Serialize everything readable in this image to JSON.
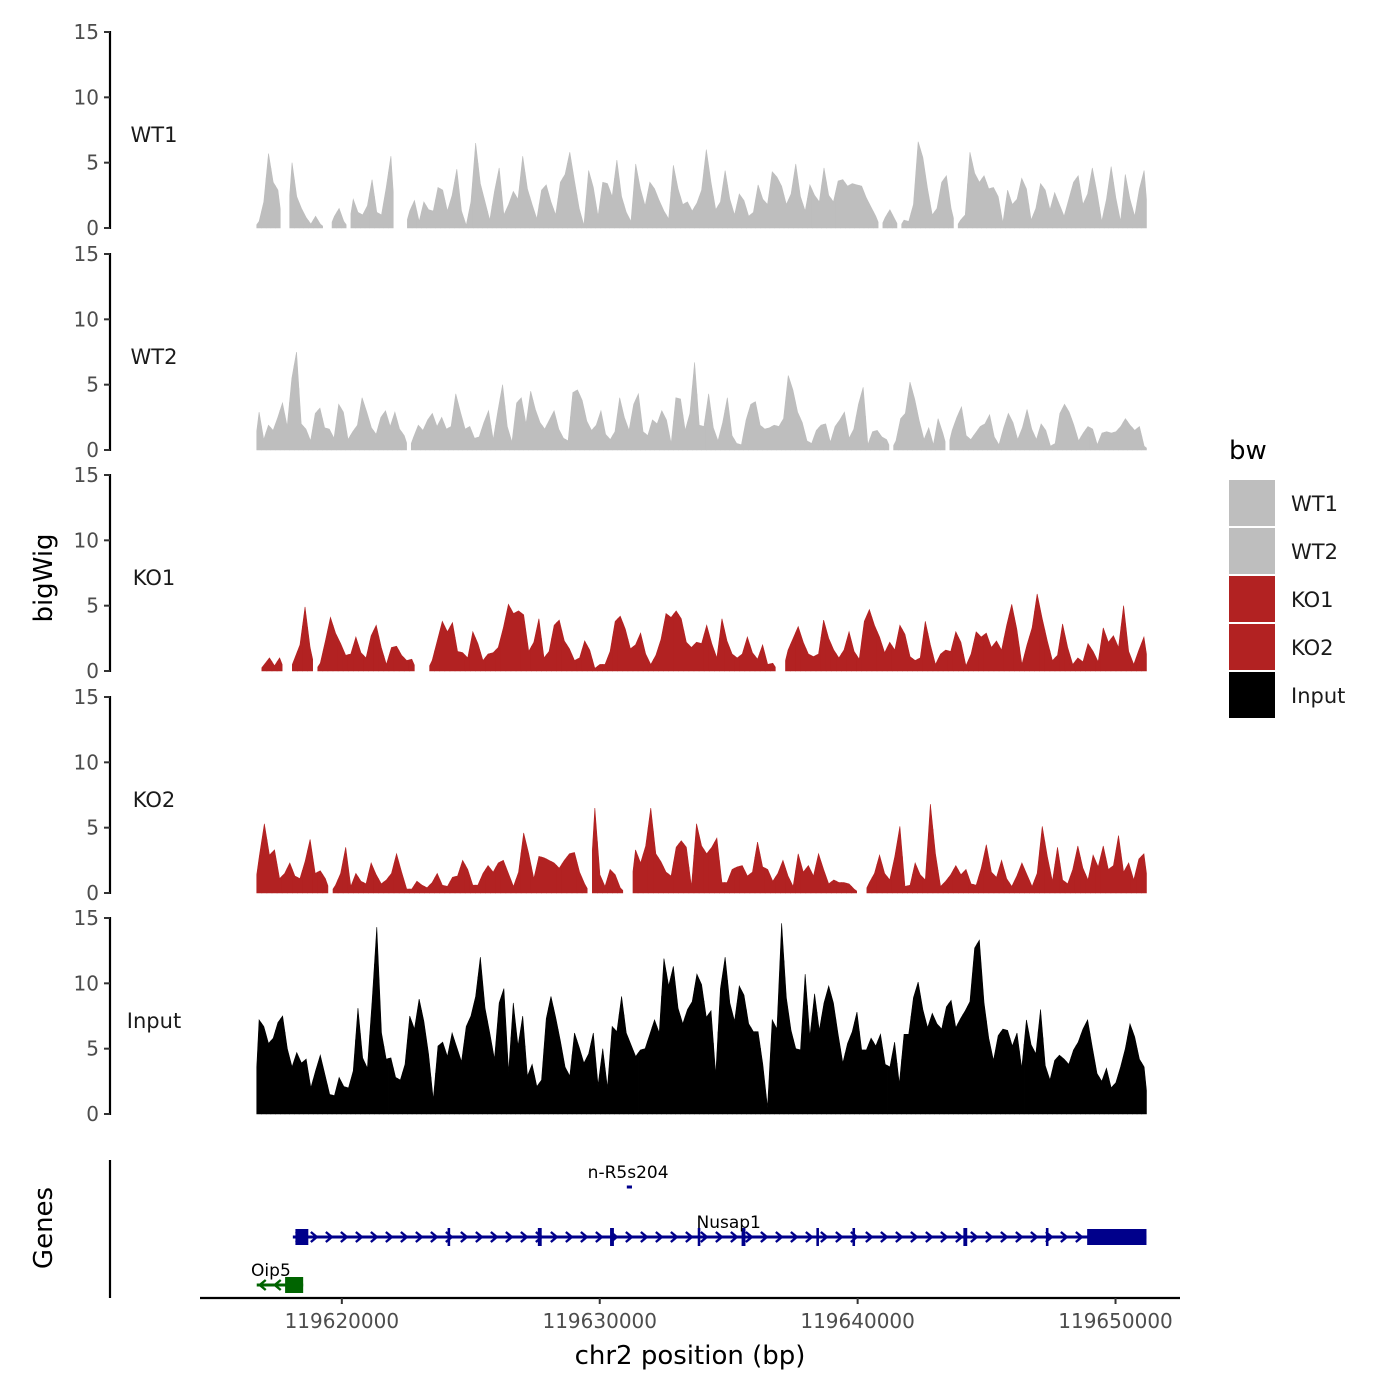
{
  "chart_data": {
    "type": "area",
    "title": "",
    "xlabel": "chr2 position (bp)",
    "ylabel": "bigWig",
    "genes_ylabel": "Genes",
    "xlim": [
      119614500,
      119652500
    ],
    "x_range": [
      119616700,
      119651200
    ],
    "ylim": [
      0,
      15
    ],
    "y_ticks": [
      "0",
      "5",
      "10",
      "15"
    ],
    "x_ticks": [
      {
        "value": 119620000,
        "label": "119620000"
      },
      {
        "value": 119630000,
        "label": "119630000"
      },
      {
        "value": 119640000,
        "label": "119640000"
      },
      {
        "value": 119650000,
        "label": "119650000"
      }
    ],
    "legend": {
      "title": "bw",
      "placement": "right",
      "items": [
        {
          "label": "WT1",
          "color": "#bebebe"
        },
        {
          "label": "WT2",
          "color": "#bebebe"
        },
        {
          "label": "KO1",
          "color": "#b22222"
        },
        {
          "label": "KO2",
          "color": "#b22222"
        },
        {
          "label": "Input",
          "color": "#000000"
        }
      ]
    },
    "series": [
      {
        "name": "WT1",
        "color": "#bebebe",
        "values": [
          0.5,
          2.0,
          5.7,
          3.5,
          2.9,
          0,
          0,
          5.0,
          2.4,
          1.5,
          0.8,
          0.3,
          0.9,
          0.3,
          0,
          0,
          0.9,
          1.5,
          0.5,
          0,
          2.2,
          1.2,
          1.0,
          1.7,
          3.7,
          1.2,
          1.0,
          3.1,
          5.5,
          0,
          0,
          0,
          1.3,
          2.1,
          0.5,
          2.0,
          1.4,
          1.3,
          3.1,
          2.9,
          1.3,
          2.5,
          4.5,
          1.3,
          0.2,
          2.0,
          6.5,
          3.4,
          2.0,
          0.6,
          2.8,
          4.6,
          1.0,
          1.8,
          2.8,
          2.2,
          5.5,
          3.0,
          1.8,
          0.7,
          2.9,
          3.3,
          2.0,
          1.0,
          3.5,
          4.1,
          5.8,
          3.6,
          1.5,
          0.2,
          4.4,
          3.1,
          0.9,
          3.5,
          3.4,
          2.4,
          5.2,
          2.4,
          1.2,
          0.5,
          4.9,
          3.0,
          1.7,
          3.5,
          3.0,
          2.1,
          1.3,
          0.7,
          4.8,
          3.0,
          1.8,
          2.0,
          1.3,
          1.9,
          2.9,
          6.0,
          3.5,
          1.4,
          2.0,
          4.4,
          2.2,
          1.0,
          2.6,
          2.1,
          0.9,
          1.2,
          3.3,
          2.2,
          1.8,
          4.3,
          3.9,
          3.2,
          1.8,
          2.6,
          4.9,
          2.4,
          1.3,
          3.3,
          2.5,
          2.0,
          4.6,
          2.5,
          2.0,
          3.6,
          3.7,
          3.2,
          3.4,
          3.3,
          3.2,
          2.3,
          1.6,
          0.9,
          0,
          0.8,
          1.4,
          0.7,
          0,
          0.6,
          0.5,
          1.8,
          6.6,
          5.4,
          3.0,
          1.0,
          1.5,
          3.5,
          4.0,
          1.5,
          0,
          0.6,
          1.0,
          5.8,
          4.2,
          3.5,
          4.0,
          3.0,
          3.1,
          2.4,
          0.4,
          2.9,
          1.8,
          2.2,
          3.8,
          3.0,
          0.6,
          1.5,
          3.4,
          2.9,
          1.4,
          2.7,
          1.8,
          0.9,
          2.2,
          3.5,
          4.0,
          1.8,
          2.6,
          4.6,
          2.7,
          0.5,
          2.2,
          4.7,
          2.3,
          0.5,
          4.1,
          2.2,
          0.9,
          3.0,
          4.4
        ]
      },
      {
        "name": "WT2",
        "color": "#bebebe",
        "values": [
          2.9,
          0.8,
          1.9,
          1.5,
          2.5,
          3.6,
          1.8,
          5.5,
          7.5,
          2.0,
          1.6,
          0.7,
          2.8,
          3.2,
          1.7,
          1.6,
          0.9,
          3.5,
          2.9,
          0.8,
          1.4,
          1.9,
          4.0,
          2.9,
          1.7,
          1.2,
          2.5,
          3.0,
          1.8,
          2.9,
          1.6,
          1.1,
          0,
          1.0,
          1.9,
          1.5,
          2.3,
          2.8,
          1.8,
          2.5,
          1.6,
          1.8,
          4.3,
          2.9,
          1.6,
          1.8,
          0.9,
          1.0,
          2.1,
          3.0,
          0.8,
          3.0,
          5.0,
          1.8,
          0.6,
          3.6,
          4.0,
          2.0,
          4.5,
          3.1,
          2.1,
          1.6,
          2.3,
          3.0,
          1.6,
          0.9,
          0.7,
          4.4,
          4.6,
          3.8,
          2.2,
          1.5,
          1.9,
          3.0,
          1.2,
          0.8,
          1.4,
          4.0,
          2.5,
          1.5,
          3.5,
          4.3,
          1.4,
          1.1,
          2.3,
          2.0,
          3.0,
          2.3,
          0.5,
          4.0,
          3.9,
          1.5,
          2.8,
          6.7,
          1.9,
          1.8,
          4.3,
          1.7,
          0.7,
          2.1,
          4.0,
          1.1,
          0.5,
          0.4,
          2.3,
          3.5,
          3.7,
          1.9,
          1.6,
          1.7,
          1.9,
          1.8,
          2.4,
          5.7,
          4.6,
          2.9,
          2.1,
          0.7,
          0.5,
          1.5,
          1.9,
          2.0,
          0.6,
          1.8,
          2.3,
          2.9,
          0.9,
          1.6,
          3.5,
          4.8,
          0.4,
          1.4,
          1.5,
          1.0,
          0.8,
          0,
          0.7,
          2.4,
          2.8,
          5.2,
          3.9,
          2.2,
          0.8,
          1.7,
          0.4,
          2.4,
          1.3,
          0,
          1.5,
          2.5,
          3.3,
          1.1,
          0.8,
          1.3,
          1.8,
          2.0,
          2.7,
          1.0,
          0.4,
          1.7,
          2.8,
          2.1,
          0.8,
          1.7,
          3.1,
          1.6,
          0.8,
          2.0,
          1.5,
          0.3,
          0.5,
          2.8,
          3.5,
          2.9,
          1.9,
          0.7,
          1.3,
          1.8,
          1.6,
          0.4,
          1.3,
          1.4,
          1.3,
          1.4,
          1.8,
          2.4,
          1.9,
          1.5,
          1.8,
          0.3
        ]
      },
      {
        "name": "KO1",
        "color": "#b22222",
        "values": [
          0,
          0.5,
          1.0,
          0.4,
          1.0,
          0,
          0,
          1.0,
          2.0,
          4.9,
          1.8,
          0,
          0.6,
          2.3,
          4.1,
          2.9,
          2.1,
          1.2,
          1.3,
          2.6,
          1.4,
          1.0,
          2.7,
          3.5,
          1.8,
          0.5,
          1.8,
          1.9,
          1.2,
          0.8,
          0.9,
          0,
          0,
          0,
          0.8,
          2.3,
          3.8,
          3.0,
          3.7,
          1.5,
          1.4,
          1.0,
          3.0,
          2.1,
          0.8,
          1.3,
          1.4,
          1.8,
          3.3,
          5.1,
          4.4,
          4.6,
          4.3,
          1.5,
          2.2,
          4.0,
          1.0,
          1.5,
          3.5,
          3.9,
          2.3,
          1.7,
          0.8,
          1.0,
          2.3,
          1.6,
          0.2,
          0.5,
          0.5,
          1.5,
          3.8,
          4.2,
          3.2,
          1.7,
          2.0,
          2.9,
          1.3,
          0.5,
          1.2,
          2.4,
          4.4,
          4.1,
          4.6,
          4.0,
          2.2,
          1.8,
          2.2,
          2.1,
          3.5,
          2.1,
          1.0,
          4.0,
          2.3,
          1.3,
          1.0,
          1.3,
          2.6,
          1.4,
          0.9,
          2.0,
          0.5,
          0.6,
          0,
          0,
          1.6,
          2.5,
          3.4,
          2.2,
          1.3,
          1.1,
          1.3,
          3.9,
          2.5,
          1.6,
          1.0,
          1.6,
          3.0,
          1.5,
          0.9,
          3.8,
          4.7,
          3.5,
          2.6,
          1.4,
          2.2,
          1.6,
          3.5,
          2.8,
          1.1,
          0.8,
          1.0,
          3.8,
          2.0,
          0.5,
          1.3,
          1.6,
          1.5,
          3.0,
          2.2,
          0.4,
          1.3,
          3.0,
          2.6,
          2.9,
          1.8,
          2.3,
          1.6,
          3.5,
          5.1,
          3.2,
          0.5,
          2.0,
          3.3,
          5.9,
          4.0,
          2.3,
          0.8,
          1.2,
          3.6,
          1.8,
          0.5,
          1.0,
          0.7,
          2.1,
          1.5,
          0.7,
          3.3,
          2.2,
          2.7,
          1.8,
          5.0,
          1.5,
          0.5,
          1.6,
          2.6
        ]
      },
      {
        "name": "KO2",
        "color": "#b22222",
        "values": [
          2.8,
          5.3,
          2.9,
          3.3,
          1.1,
          1.5,
          2.3,
          1.3,
          1.1,
          2.4,
          4.1,
          1.5,
          1.7,
          1.1,
          0,
          0.6,
          1.5,
          3.5,
          0.5,
          1.5,
          0.9,
          0.7,
          2.3,
          1.4,
          0.7,
          1.0,
          1.5,
          3.0,
          1.6,
          0.3,
          0.3,
          0.9,
          0.6,
          0.4,
          0.8,
          1.5,
          0.6,
          0.5,
          1.2,
          1.3,
          2.5,
          1.8,
          0.6,
          0.6,
          1.5,
          2.1,
          1.6,
          2.3,
          2.5,
          1.5,
          0.5,
          1.6,
          4.6,
          3.0,
          1.1,
          2.8,
          2.7,
          2.5,
          2.3,
          1.9,
          2.5,
          3.0,
          3.1,
          1.6,
          0.7,
          0,
          6.5,
          1.4,
          0.5,
          1.8,
          1.4,
          0.4,
          0,
          0,
          3.3,
          2.3,
          3.6,
          6.5,
          3.0,
          2.4,
          1.6,
          1.3,
          3.5,
          4.0,
          3.5,
          0.5,
          5.3,
          3.6,
          3.0,
          3.5,
          4.2,
          0.8,
          0.8,
          1.8,
          2.0,
          2.1,
          1.3,
          1.6,
          3.9,
          2.0,
          1.8,
          0.9,
          1.5,
          2.5,
          1.3,
          0.5,
          3.0,
          1.6,
          2.1,
          1.3,
          3.0,
          1.8,
          0.7,
          1.0,
          0.8,
          0.8,
          0.7,
          0.3,
          0,
          0,
          0.8,
          1.5,
          2.9,
          1.5,
          1.0,
          2.8,
          5.1,
          0.5,
          0.6,
          2.3,
          1.4,
          1.0,
          6.8,
          3.0,
          0.5,
          0.9,
          1.4,
          2.1,
          1.4,
          1.8,
          0.7,
          0.6,
          1.9,
          3.7,
          1.6,
          1.2,
          2.5,
          1.1,
          0.5,
          1.3,
          2.3,
          1.4,
          0.5,
          1.5,
          5.1,
          2.8,
          0.9,
          3.5,
          1.0,
          0.7,
          1.8,
          3.6,
          1.9,
          1.0,
          2.9,
          2.0,
          3.6,
          1.8,
          2.1,
          4.4,
          1.6,
          2.3,
          1.0,
          2.6,
          3.0
        ]
      },
      {
        "name": "Input",
        "color": "#000000",
        "values": [
          7.2,
          6.7,
          5.4,
          5.8,
          7.0,
          7.5,
          5.0,
          3.6,
          4.7,
          3.9,
          4.2,
          2.0,
          3.3,
          4.5,
          3.0,
          1.5,
          1.4,
          2.8,
          2.1,
          2.0,
          3.3,
          8.1,
          4.3,
          3.5,
          8.6,
          14.3,
          6.2,
          4.2,
          4.3,
          2.8,
          2.6,
          3.8,
          7.5,
          6.5,
          8.8,
          7.1,
          4.6,
          1.1,
          5.2,
          5.5,
          4.4,
          6.2,
          5.1,
          4.0,
          6.7,
          7.5,
          9.0,
          12.0,
          8.1,
          6.2,
          4.2,
          8.5,
          9.6,
          3.2,
          8.5,
          5.2,
          7.5,
          2.9,
          3.8,
          2.1,
          2.6,
          7.3,
          9.0,
          7.4,
          5.6,
          3.6,
          2.9,
          6.2,
          5.1,
          3.9,
          4.6,
          6.2,
          2.2,
          5.0,
          2.0,
          6.7,
          6.3,
          9.0,
          6.2,
          5.3,
          4.4,
          4.9,
          5.0,
          6.1,
          7.2,
          6.2,
          11.9,
          9.8,
          11.3,
          8.1,
          6.9,
          8.0,
          8.6,
          10.7,
          9.9,
          7.4,
          7.9,
          3.0,
          9.6,
          12.0,
          8.5,
          7.1,
          9.8,
          9.1,
          6.9,
          6.3,
          6.3,
          3.8,
          0.5,
          7.2,
          6.5,
          14.6,
          8.9,
          6.4,
          5.0,
          4.9,
          10.7,
          5.9,
          9.2,
          6.4,
          8.5,
          9.8,
          8.5,
          6.1,
          3.9,
          5.4,
          6.3,
          7.8,
          4.9,
          4.9,
          5.8,
          5.2,
          6.1,
          3.8,
          3.6,
          5.5,
          2.3,
          6.1,
          6.1,
          8.9,
          10.1,
          8.0,
          6.6,
          7.7,
          6.9,
          6.5,
          8.2,
          8.7,
          6.6,
          7.3,
          7.9,
          8.6,
          12.7,
          13.3,
          8.5,
          5.8,
          4.1,
          6.0,
          6.5,
          6.4,
          5.2,
          6.2,
          3.5,
          7.2,
          5.3,
          4.6,
          8.0,
          3.7,
          2.6,
          4.1,
          4.5,
          4.2,
          3.8,
          4.9,
          5.5,
          6.5,
          7.2,
          5.1,
          3.1,
          2.5,
          3.5,
          2.0,
          2.4,
          3.6,
          5.0,
          6.9,
          5.9,
          4.2,
          3.6
        ]
      }
    ],
    "genes": [
      {
        "name": "n-R5s204",
        "strand": "+",
        "color": "#00008b",
        "start": 119631050,
        "end": 119631250,
        "row": 0
      },
      {
        "name": "Nusap1",
        "strand": "+",
        "color": "#00008b",
        "start": 119618100,
        "end": 119651200,
        "row": 1,
        "exons": [
          [
            119618200,
            119618700
          ],
          [
            119624100,
            119624200
          ],
          [
            119627600,
            119627750
          ],
          [
            119630400,
            119630550
          ],
          [
            119633800,
            119633900
          ],
          [
            119635500,
            119635650
          ],
          [
            119638400,
            119638500
          ],
          [
            119639800,
            119639900
          ],
          [
            119644100,
            119644250
          ],
          [
            119647300,
            119647400
          ],
          [
            119648900,
            119651200
          ]
        ]
      },
      {
        "name": "Oip5",
        "strand": "-",
        "color": "#006400",
        "start": 119616700,
        "end": 119618500,
        "row": 2,
        "exons": [
          [
            119617800,
            119618500
          ]
        ]
      }
    ]
  }
}
